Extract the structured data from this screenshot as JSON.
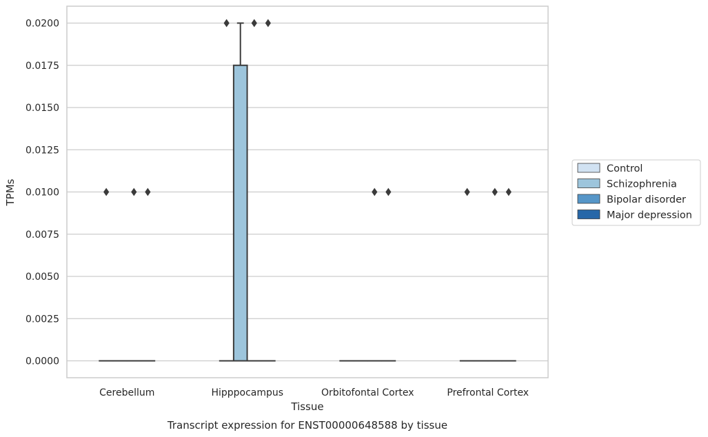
{
  "chart_data": {
    "type": "box",
    "title": "Transcript expression for ENST00000648588 by tissue",
    "xlabel": "Tissue",
    "ylabel": "TPMs",
    "ylim": [
      -0.001,
      0.021
    ],
    "yticks": [
      "0.0000",
      "0.0025",
      "0.0050",
      "0.0075",
      "0.0100",
      "0.0125",
      "0.0150",
      "0.0175",
      "0.0200"
    ],
    "grid": true,
    "legend_position": "right",
    "categories": [
      "Cerebellum",
      "Hipppocampus",
      "Orbitofontal Cortex",
      "Prefrontal Cortex"
    ],
    "series": [
      {
        "name": "Control",
        "color": "#d1e2f2"
      },
      {
        "name": "Schizophrenia",
        "color": "#9dc5dc"
      },
      {
        "name": "Bipolar disorder",
        "color": "#5696c8"
      },
      {
        "name": "Major depression",
        "color": "#2767a8"
      }
    ],
    "boxes": [
      {
        "category": "Cerebellum",
        "series": "Control",
        "q1": 0,
        "median": 0,
        "q3": 0,
        "whisker_low": 0,
        "whisker_high": 0,
        "outliers": [
          0.01
        ]
      },
      {
        "category": "Cerebellum",
        "series": "Schizophrenia",
        "q1": 0,
        "median": 0,
        "q3": 0,
        "whisker_low": 0,
        "whisker_high": 0,
        "outliers": []
      },
      {
        "category": "Cerebellum",
        "series": "Bipolar disorder",
        "q1": 0,
        "median": 0,
        "q3": 0,
        "whisker_low": 0,
        "whisker_high": 0,
        "outliers": [
          0.01
        ]
      },
      {
        "category": "Cerebellum",
        "series": "Major depression",
        "q1": 0,
        "median": 0,
        "q3": 0,
        "whisker_low": 0,
        "whisker_high": 0,
        "outliers": [
          0.01
        ]
      },
      {
        "category": "Hipppocampus",
        "series": "Control",
        "q1": 0,
        "median": 0,
        "q3": 0,
        "whisker_low": 0,
        "whisker_high": 0,
        "outliers": [
          0.02
        ]
      },
      {
        "category": "Hipppocampus",
        "series": "Schizophrenia",
        "q1": 0,
        "median": 0,
        "q3": 0.0175,
        "whisker_low": 0,
        "whisker_high": 0.02,
        "outliers": []
      },
      {
        "category": "Hipppocampus",
        "series": "Bipolar disorder",
        "q1": 0,
        "median": 0,
        "q3": 0,
        "whisker_low": 0,
        "whisker_high": 0,
        "outliers": [
          0.02
        ]
      },
      {
        "category": "Hipppocampus",
        "series": "Major depression",
        "q1": 0,
        "median": 0,
        "q3": 0,
        "whisker_low": 0,
        "whisker_high": 0,
        "outliers": [
          0.02
        ]
      },
      {
        "category": "Orbitofontal Cortex",
        "series": "Control",
        "q1": 0,
        "median": 0,
        "q3": 0,
        "whisker_low": 0,
        "whisker_high": 0,
        "outliers": []
      },
      {
        "category": "Orbitofontal Cortex",
        "series": "Schizophrenia",
        "q1": 0,
        "median": 0,
        "q3": 0,
        "whisker_low": 0,
        "whisker_high": 0,
        "outliers": []
      },
      {
        "category": "Orbitofontal Cortex",
        "series": "Bipolar disorder",
        "q1": 0,
        "median": 0,
        "q3": 0,
        "whisker_low": 0,
        "whisker_high": 0,
        "outliers": [
          0.01
        ]
      },
      {
        "category": "Orbitofontal Cortex",
        "series": "Major depression",
        "q1": 0,
        "median": 0,
        "q3": 0,
        "whisker_low": 0,
        "whisker_high": 0,
        "outliers": [
          0.01
        ]
      },
      {
        "category": "Prefrontal Cortex",
        "series": "Control",
        "q1": 0,
        "median": 0,
        "q3": 0,
        "whisker_low": 0,
        "whisker_high": 0,
        "outliers": [
          0.01
        ]
      },
      {
        "category": "Prefrontal Cortex",
        "series": "Schizophrenia",
        "q1": 0,
        "median": 0,
        "q3": 0,
        "whisker_low": 0,
        "whisker_high": 0,
        "outliers": []
      },
      {
        "category": "Prefrontal Cortex",
        "series": "Bipolar disorder",
        "q1": 0,
        "median": 0,
        "q3": 0,
        "whisker_low": 0,
        "whisker_high": 0,
        "outliers": [
          0.01
        ]
      },
      {
        "category": "Prefrontal Cortex",
        "series": "Major depression",
        "q1": 0,
        "median": 0,
        "q3": 0,
        "whisker_low": 0,
        "whisker_high": 0,
        "outliers": [
          0.01
        ]
      }
    ]
  }
}
